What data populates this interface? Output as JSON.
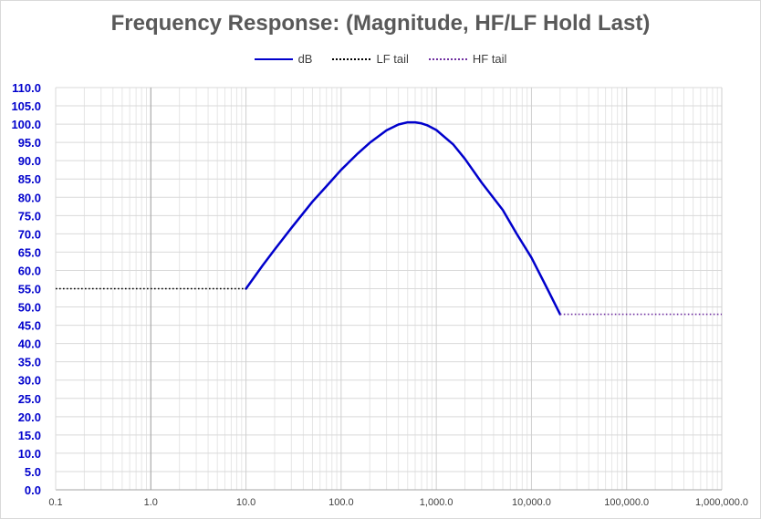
{
  "chart_data": {
    "type": "line",
    "title": "Frequency Response: (Magnitude, HF/LF Hold Last)",
    "xscale": "log",
    "xlim": [
      0.1,
      1000000
    ],
    "ylim": [
      0,
      110
    ],
    "x_tick_labels": [
      "0.1",
      "1.0",
      "10.0",
      "100.0",
      "1,000.0",
      "10,000.0",
      "100,000.0",
      "1,000,000.0"
    ],
    "x_ticks": [
      0.1,
      1,
      10,
      100,
      1000,
      10000,
      100000,
      1000000
    ],
    "y_tick_labels": [
      "0.0",
      "5.0",
      "10.0",
      "15.0",
      "20.0",
      "25.0",
      "30.0",
      "35.0",
      "40.0",
      "45.0",
      "50.0",
      "55.0",
      "60.0",
      "65.0",
      "70.0",
      "75.0",
      "80.0",
      "85.0",
      "90.0",
      "95.0",
      "100.0",
      "105.0",
      "110.0"
    ],
    "y_ticks": [
      0,
      5,
      10,
      15,
      20,
      25,
      30,
      35,
      40,
      45,
      50,
      55,
      60,
      65,
      70,
      75,
      80,
      85,
      90,
      95,
      100,
      105,
      110
    ],
    "grid": true,
    "legend_position": "top",
    "series": [
      {
        "name": "dB",
        "color": "#0000cc",
        "style": "solid",
        "x": [
          10,
          15,
          20,
          30,
          50,
          70,
          100,
          150,
          200,
          300,
          400,
          500,
          600,
          700,
          800,
          1000,
          1500,
          2000,
          3000,
          5000,
          7000,
          10000,
          15000,
          20000
        ],
        "y": [
          55.0,
          61.4,
          65.7,
          71.6,
          78.8,
          83.0,
          87.5,
          92.0,
          94.9,
          98.3,
          99.9,
          100.5,
          100.5,
          100.2,
          99.7,
          98.4,
          94.5,
          90.5,
          84.0,
          76.5,
          70.0,
          63.5,
          54.5,
          48.0
        ]
      },
      {
        "name": "LF tail",
        "color": "#000000",
        "style": "dotted",
        "x": [
          0.1,
          10
        ],
        "y": [
          55.0,
          55.0
        ]
      },
      {
        "name": "HF tail",
        "color": "#7030a0",
        "style": "dotted",
        "x": [
          20000,
          1000000
        ],
        "y": [
          48.0,
          48.0
        ]
      }
    ]
  }
}
